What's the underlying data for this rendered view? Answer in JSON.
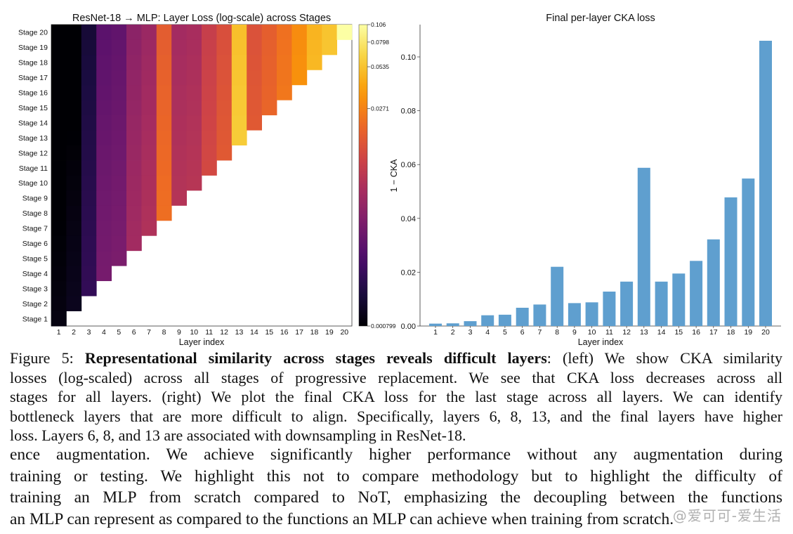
{
  "colors": {
    "bar": "#5f9fcf",
    "colormap": [
      "#000004",
      "#1b0c41",
      "#4a0c6b",
      "#781c6d",
      "#a52c60",
      "#cf4446",
      "#ed6925",
      "#fb9b06",
      "#f7d13d",
      "#fcffa4"
    ]
  },
  "heatmap": {
    "title": "ResNet-18 → MLP: Layer Loss (log-scale) across Stages",
    "xlabel": "Layer index",
    "stage_prefix": "Stage",
    "stage_labels": [
      "Stage 20",
      "Stage 19",
      "Stage 18",
      "Stage 17",
      "Stage 16",
      "Stage 15",
      "Stage 14",
      "Stage 13",
      "Stage 12",
      "Stage 11",
      "Stage 10",
      "Stage 9",
      "Stage 8",
      "Stage 7",
      "Stage 6",
      "Stage 5",
      "Stage 4",
      "Stage 3",
      "Stage 2",
      "Stage 1"
    ],
    "layer_labels": [
      "1",
      "2",
      "3",
      "4",
      "5",
      "6",
      "7",
      "8",
      "9",
      "10",
      "11",
      "12",
      "13",
      "14",
      "15",
      "16",
      "17",
      "18",
      "19",
      "20"
    ],
    "colorbar_ticks": [
      "0.106",
      "0.0798",
      "0.0535",
      "0.0271",
      "0.000799"
    ],
    "vmin": 0.0008,
    "vmax": 0.106
  },
  "chart_data": [
    {
      "type": "heatmap",
      "title": "ResNet-18 → MLP: Layer Loss (log-scale) across Stages",
      "xlabel": "Layer index",
      "ylabel": "",
      "rows": [
        "Stage 1",
        "Stage 2",
        "Stage 3",
        "Stage 4",
        "Stage 5",
        "Stage 6",
        "Stage 7",
        "Stage 8",
        "Stage 9",
        "Stage 10",
        "Stage 11",
        "Stage 12",
        "Stage 13",
        "Stage 14",
        "Stage 15",
        "Stage 16",
        "Stage 17",
        "Stage 18",
        "Stage 19",
        "Stage 20"
      ],
      "columns": [
        "1",
        "2",
        "3",
        "4",
        "5",
        "6",
        "7",
        "8",
        "9",
        "10",
        "11",
        "12",
        "13",
        "14",
        "15",
        "16",
        "17",
        "18",
        "19",
        "20"
      ],
      "note": "Lower-triangular: stage s has values for layers 1..s; values are the final per-layer losses (log-scaled colours).",
      "layer_values": [
        0.0009,
        0.001,
        0.0018,
        0.004,
        0.0042,
        0.0068,
        0.008,
        0.022,
        0.0085,
        0.0088,
        0.0128,
        0.0165,
        0.0588,
        0.0165,
        0.0195,
        0.0242,
        0.0322,
        0.0478,
        0.0548,
        0.106
      ],
      "colorbar": {
        "min": 0.000799,
        "max": 0.106,
        "ticks": [
          0.106,
          0.0798,
          0.0535,
          0.0271,
          0.000799
        ],
        "scale": "log"
      }
    },
    {
      "type": "bar",
      "title": "Final per-layer CKA loss",
      "xlabel": "Layer index",
      "ylabel": "1 − CKA",
      "categories": [
        "1",
        "2",
        "3",
        "4",
        "5",
        "6",
        "7",
        "8",
        "9",
        "10",
        "11",
        "12",
        "13",
        "14",
        "15",
        "16",
        "17",
        "18",
        "19",
        "20"
      ],
      "values": [
        0.0009,
        0.001,
        0.0018,
        0.004,
        0.0042,
        0.0068,
        0.008,
        0.022,
        0.0085,
        0.0088,
        0.0128,
        0.0165,
        0.0588,
        0.0165,
        0.0195,
        0.0242,
        0.0322,
        0.0478,
        0.0548,
        0.106
      ],
      "yticks": [
        "0.00",
        "0.02",
        "0.04",
        "0.06",
        "0.08",
        "0.10"
      ],
      "ylim": [
        0,
        0.112
      ],
      "grid": false
    }
  ],
  "caption": {
    "figure_label": "Figure 5:",
    "bold_title": "Representational similarity across stages reveals difficult layers",
    "line1_tail": ": (left) We show CKA similarity",
    "line2": "losses (log-scaled) across all stages of progressive replacement. We see that CKA loss decreases across all",
    "line3": "stages for all layers. (right) We plot the final CKA loss for the last stage across all layers. We can identify",
    "line4": "bottleneck layers that are more difficult to align. Specifically, layers 6, 8, 13, and the final layers have higher",
    "line5": "loss. Layers 6, 8, and 13 are associated with downsampling in ResNet-18."
  },
  "body": {
    "line1": "ence augmentation. We achieve significantly higher performance without any augmentation during",
    "line2": "training or testing. We highlight this not to compare methodology but to highlight the difficulty of",
    "line3": "training an MLP from scratch compared to NoT, emphasizing the decoupling between the functions",
    "line4": "an MLP can represent as compared to the functions an MLP can achieve when training from scratch."
  },
  "watermark": "@爱可可-爱生活"
}
